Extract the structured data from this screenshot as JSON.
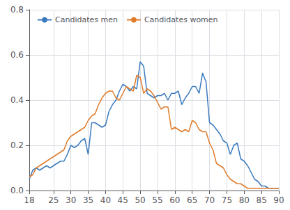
{
  "chart_data": {
    "type": "line",
    "x": [
      18,
      19,
      20,
      21,
      22,
      23,
      24,
      25,
      26,
      27,
      28,
      29,
      30,
      31,
      32,
      33,
      34,
      35,
      36,
      37,
      38,
      39,
      40,
      41,
      42,
      43,
      44,
      45,
      46,
      47,
      48,
      49,
      50,
      51,
      52,
      53,
      54,
      55,
      56,
      57,
      58,
      59,
      60,
      61,
      62,
      63,
      64,
      65,
      66,
      67,
      68,
      69,
      70,
      71,
      72,
      73,
      74,
      75,
      76,
      77,
      78,
      79,
      80,
      81,
      82,
      83,
      84,
      85,
      86,
      87,
      88,
      89,
      90
    ],
    "series": [
      {
        "name": "Candidates men",
        "color": "#3a7abf",
        "values": [
          0.05,
          0.09,
          0.1,
          0.09,
          0.1,
          0.11,
          0.1,
          0.11,
          0.12,
          0.13,
          0.13,
          0.16,
          0.2,
          0.19,
          0.2,
          0.22,
          0.23,
          0.16,
          0.3,
          0.3,
          0.29,
          0.28,
          0.29,
          0.35,
          0.38,
          0.4,
          0.44,
          0.47,
          0.46,
          0.44,
          0.46,
          0.45,
          0.57,
          0.55,
          0.43,
          0.42,
          0.41,
          0.42,
          0.42,
          0.43,
          0.4,
          0.43,
          0.43,
          0.44,
          0.38,
          0.41,
          0.43,
          0.46,
          0.46,
          0.43,
          0.52,
          0.48,
          0.3,
          0.29,
          0.27,
          0.25,
          0.22,
          0.21,
          0.16,
          0.2,
          0.21,
          0.14,
          0.13,
          0.11,
          0.08,
          0.05,
          0.04,
          0.02,
          0.02,
          0.01,
          0.01,
          0.01,
          0.01
        ]
      },
      {
        "name": "Candidates women",
        "color": "#e07b2a",
        "values": [
          0.06,
          0.07,
          0.1,
          0.11,
          0.12,
          0.13,
          0.14,
          0.15,
          0.16,
          0.17,
          0.18,
          0.22,
          0.24,
          0.25,
          0.26,
          0.27,
          0.28,
          0.31,
          0.33,
          0.34,
          0.38,
          0.41,
          0.43,
          0.44,
          0.44,
          0.41,
          0.4,
          0.43,
          0.46,
          0.45,
          0.44,
          0.51,
          0.5,
          0.43,
          0.45,
          0.44,
          0.42,
          0.39,
          0.36,
          0.37,
          0.37,
          0.27,
          0.28,
          0.27,
          0.26,
          0.27,
          0.26,
          0.31,
          0.3,
          0.27,
          0.26,
          0.26,
          0.21,
          0.18,
          0.12,
          0.11,
          0.1,
          0.07,
          0.05,
          0.04,
          0.03,
          0.03,
          0.02,
          0.01,
          0.01,
          0.01,
          0.01,
          0.01,
          0.01,
          0.01,
          0.01,
          0.01,
          0.01
        ]
      }
    ],
    "xlim": [
      18,
      90
    ],
    "ylim": [
      0.0,
      0.8
    ],
    "xticks": [
      18,
      25,
      30,
      35,
      40,
      45,
      50,
      55,
      60,
      65,
      70,
      75,
      80,
      85,
      90
    ],
    "yticks": [
      {
        "value": 0.0,
        "label": "0.0"
      },
      0.2,
      0.4,
      0.6,
      0.8
    ],
    "grid": true,
    "legend": "upper left"
  }
}
